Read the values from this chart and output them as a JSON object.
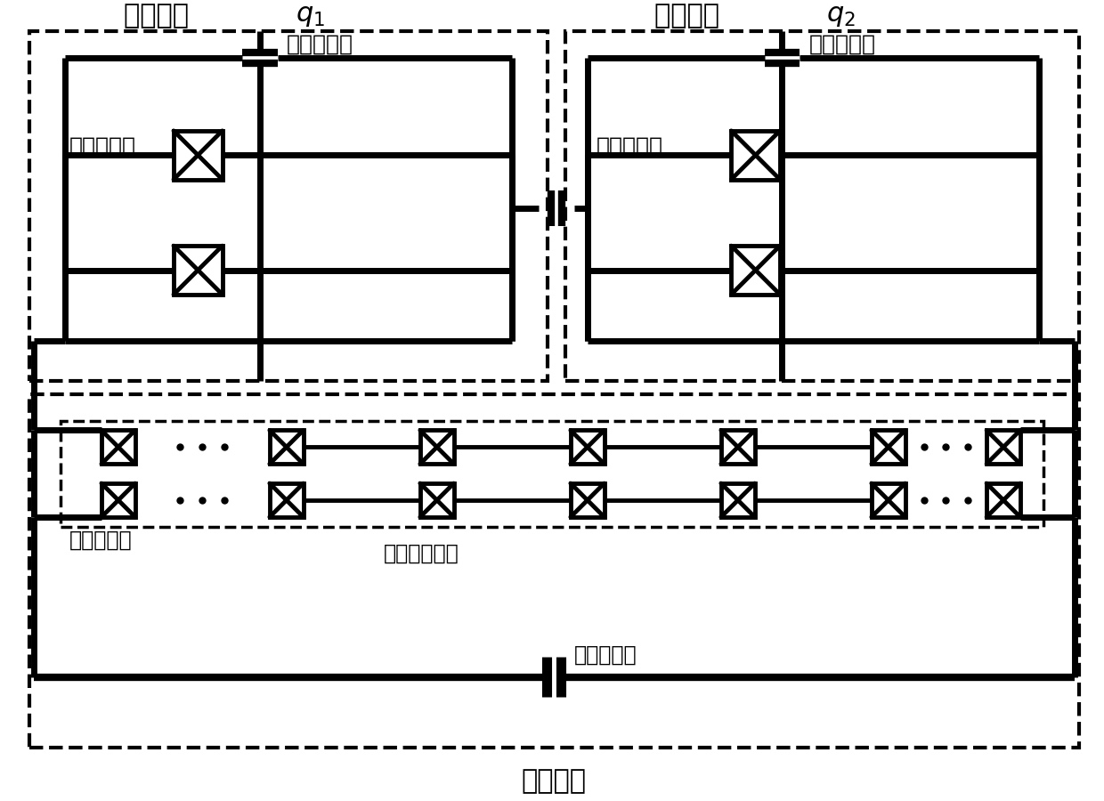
{
  "title_q1_text": "量子比特 ",
  "title_q1_math": "$\\boldsymbol{q_1}$",
  "title_q2_text": "量子比特 ",
  "title_q2_math": "$\\boldsymbol{q_2}$",
  "label_josephson": "约瑟夫森结",
  "label_josephson_chain": "约瑟夫森结链",
  "label_cap2": "第二电容器",
  "label_cap1": "第一电容器",
  "label_coupler": "耦合器件",
  "bg_color": "#ffffff",
  "line_color": "#000000"
}
